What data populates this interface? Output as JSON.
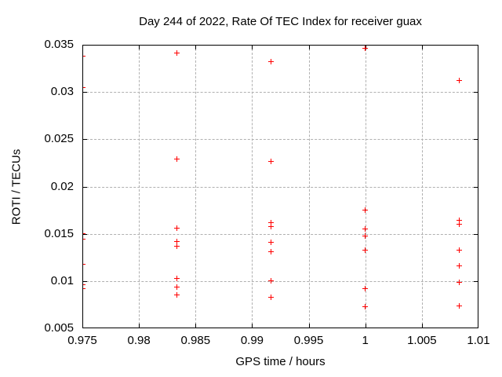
{
  "chart_data": {
    "type": "scatter",
    "title": "Day 244 of 2022, Rate Of TEC Index for receiver guax",
    "xlabel": "GPS time / hours",
    "ylabel": "ROTI / TECUs",
    "xlim": [
      0.975,
      1.01
    ],
    "ylim": [
      0.005,
      0.035
    ],
    "xticks": [
      0.975,
      0.98,
      0.985,
      0.99,
      0.995,
      1,
      1.005,
      1.01
    ],
    "xtick_labels": [
      "0.975",
      "0.98",
      "0.985",
      "0.99",
      "0.995",
      "1",
      "1.005",
      "1.01"
    ],
    "yticks": [
      0.005,
      0.01,
      0.015,
      0.02,
      0.025,
      0.03,
      0.035
    ],
    "ytick_labels": [
      "0.005",
      "0.01",
      "0.015",
      "0.02",
      "0.025",
      "0.03",
      "0.035"
    ],
    "grid": true,
    "legend": "none",
    "marker": "plus",
    "colors": {
      "marker": "#ff0000",
      "grid": "#b0b0b0",
      "axis": "#000000",
      "background": "#ffffff"
    },
    "points": [
      [
        0.975,
        0.0338
      ],
      [
        0.975,
        0.0305
      ],
      [
        0.975,
        0.015
      ],
      [
        0.975,
        0.0144
      ],
      [
        0.975,
        0.0118
      ],
      [
        0.975,
        0.0096
      ],
      [
        0.975,
        0.0092
      ],
      [
        0.98333,
        0.0341
      ],
      [
        0.98333,
        0.0229
      ],
      [
        0.98333,
        0.0156
      ],
      [
        0.98333,
        0.0142
      ],
      [
        0.98333,
        0.0137
      ],
      [
        0.98333,
        0.0103
      ],
      [
        0.98333,
        0.0094
      ],
      [
        0.98333,
        0.0085
      ],
      [
        0.99167,
        0.0332
      ],
      [
        0.99167,
        0.0227
      ],
      [
        0.99167,
        0.0162
      ],
      [
        0.99167,
        0.0158
      ],
      [
        0.99167,
        0.0141
      ],
      [
        0.99167,
        0.0131
      ],
      [
        0.99167,
        0.01
      ],
      [
        0.99167,
        0.0083
      ],
      [
        1.0,
        0.0346
      ],
      [
        1.0,
        0.0175
      ],
      [
        1.0,
        0.0155
      ],
      [
        1.0,
        0.0148
      ],
      [
        1.0,
        0.0133
      ],
      [
        1.0,
        0.0092
      ],
      [
        1.0,
        0.0073
      ],
      [
        1.00833,
        0.0312
      ],
      [
        1.00833,
        0.0164
      ],
      [
        1.00833,
        0.016
      ],
      [
        1.00833,
        0.0133
      ],
      [
        1.00833,
        0.0116
      ],
      [
        1.00833,
        0.0099
      ],
      [
        1.00833,
        0.0074
      ]
    ]
  }
}
